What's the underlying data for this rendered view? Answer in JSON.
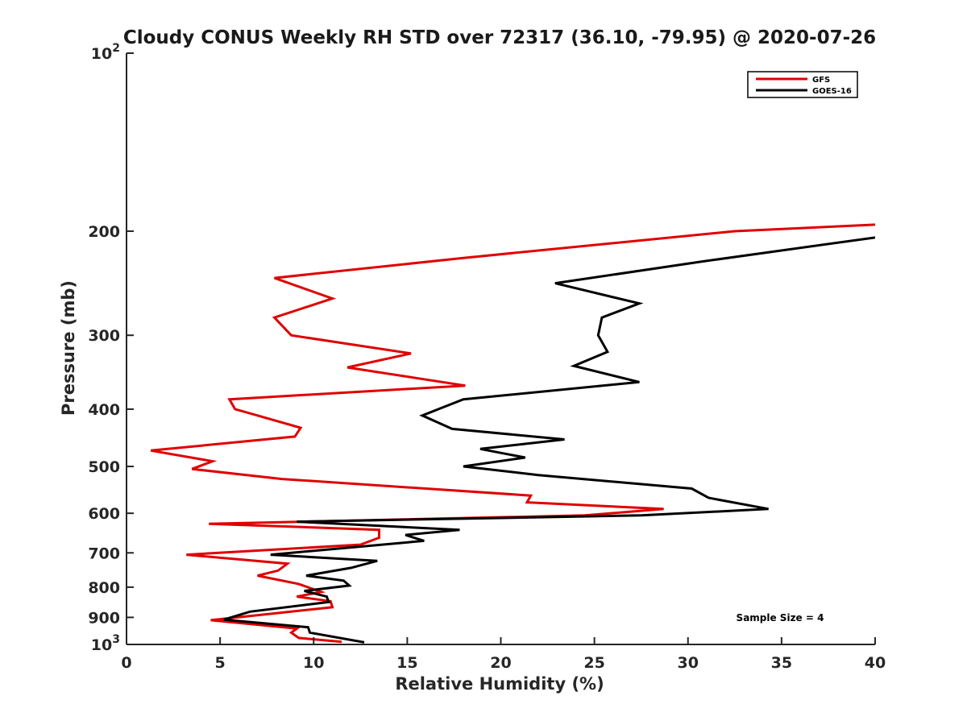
{
  "chart_data": {
    "type": "line",
    "title": "Cloudy CONUS Weekly RH STD over 72317 (36.10, -79.95) @ 2020-07-26",
    "xlabel": "Relative Humidity (%)",
    "ylabel": "Pressure (mb)",
    "xlim": [
      0,
      40
    ],
    "ylim": [
      100,
      1000
    ],
    "y_scale": "log",
    "y_reversed": true,
    "grid": false,
    "legend_position": "top-right",
    "x_ticks": [
      0,
      5,
      10,
      15,
      20,
      25,
      30,
      35,
      40
    ],
    "y_ticks": [
      {
        "value": 100,
        "base": "10",
        "exp": "2",
        "label": ""
      },
      {
        "value": 200,
        "label": "200"
      },
      {
        "value": 300,
        "label": "300"
      },
      {
        "value": 400,
        "label": "400"
      },
      {
        "value": 500,
        "label": "500"
      },
      {
        "value": 600,
        "label": "600"
      },
      {
        "value": 700,
        "label": "700"
      },
      {
        "value": 800,
        "label": "800"
      },
      {
        "value": 900,
        "label": "900"
      },
      {
        "value": 1000,
        "base": "10",
        "exp": "3",
        "label": ""
      }
    ],
    "annotation": "Sample Size = 4",
    "series": [
      {
        "name": "GFS",
        "color": "#e00000",
        "points": [
          [
            40.0,
            195
          ],
          [
            32.5,
            200
          ],
          [
            18.0,
            222
          ],
          [
            7.9,
            240
          ],
          [
            11.0,
            260
          ],
          [
            7.9,
            280
          ],
          [
            8.8,
            300
          ],
          [
            15.2,
            322
          ],
          [
            11.8,
            340
          ],
          [
            18.1,
            365
          ],
          [
            5.5,
            385
          ],
          [
            5.8,
            400
          ],
          [
            9.3,
            430
          ],
          [
            9.0,
            445
          ],
          [
            1.3,
            470
          ],
          [
            4.6,
            490
          ],
          [
            3.5,
            505
          ],
          [
            8.3,
            525
          ],
          [
            21.6,
            560
          ],
          [
            21.4,
            575
          ],
          [
            28.7,
            590
          ],
          [
            24.5,
            605
          ],
          [
            4.4,
            625
          ],
          [
            13.5,
            640
          ],
          [
            13.5,
            660
          ],
          [
            12.5,
            678
          ],
          [
            3.2,
            705
          ],
          [
            8.6,
            730
          ],
          [
            8.1,
            750
          ],
          [
            7.0,
            765
          ],
          [
            9.2,
            790
          ],
          [
            10.4,
            815
          ],
          [
            9.1,
            830
          ],
          [
            10.9,
            845
          ],
          [
            11.0,
            865
          ],
          [
            4.5,
            910
          ],
          [
            9.1,
            940
          ],
          [
            8.8,
            955
          ],
          [
            9.2,
            975
          ],
          [
            11.5,
            990
          ]
        ]
      },
      {
        "name": "GOES-16",
        "color": "#000000",
        "points": [
          [
            40.0,
            205
          ],
          [
            30.8,
            225
          ],
          [
            22.9,
            245
          ],
          [
            27.4,
            265
          ],
          [
            25.4,
            280
          ],
          [
            25.2,
            300
          ],
          [
            25.7,
            320
          ],
          [
            23.9,
            338
          ],
          [
            27.4,
            360
          ],
          [
            18.0,
            385
          ],
          [
            15.8,
            410
          ],
          [
            17.4,
            432
          ],
          [
            23.4,
            450
          ],
          [
            18.9,
            467
          ],
          [
            21.3,
            483
          ],
          [
            18.0,
            500
          ],
          [
            22.0,
            517
          ],
          [
            30.2,
            545
          ],
          [
            31.1,
            565
          ],
          [
            34.3,
            590
          ],
          [
            27.5,
            605
          ],
          [
            9.1,
            620
          ],
          [
            17.8,
            640
          ],
          [
            14.9,
            653
          ],
          [
            15.9,
            668
          ],
          [
            7.7,
            705
          ],
          [
            13.4,
            722
          ],
          [
            12.0,
            742
          ],
          [
            9.6,
            765
          ],
          [
            11.6,
            780
          ],
          [
            11.9,
            795
          ],
          [
            9.5,
            812
          ],
          [
            10.7,
            830
          ],
          [
            10.8,
            848
          ],
          [
            6.6,
            880
          ],
          [
            5.2,
            908
          ],
          [
            9.7,
            935
          ],
          [
            9.8,
            955
          ],
          [
            12.7,
            992
          ]
        ]
      }
    ]
  }
}
